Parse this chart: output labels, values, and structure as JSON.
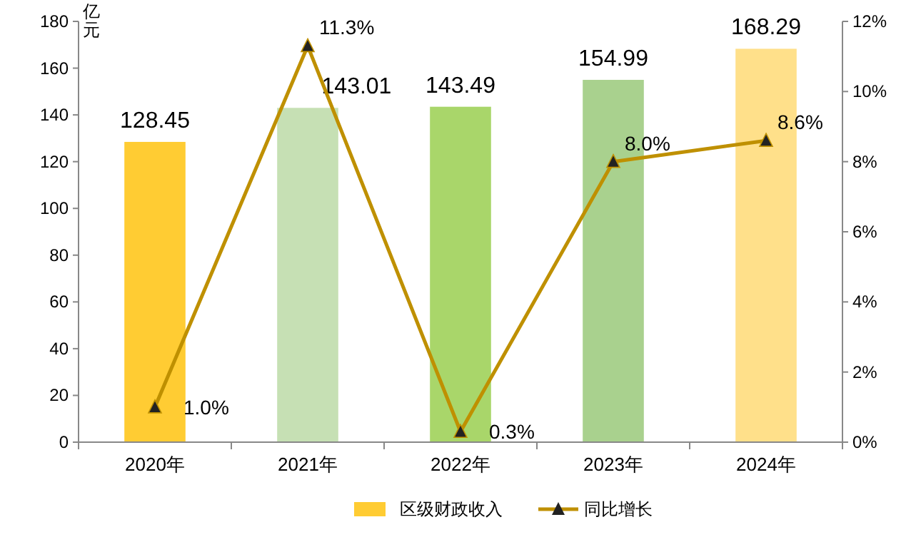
{
  "chart_data": {
    "type": "bar",
    "categories": [
      "2020年",
      "2021年",
      "2022年",
      "2023年",
      "2024年"
    ],
    "ylabel": "亿元",
    "ylim": [
      0,
      180
    ],
    "yticks": [
      0,
      20,
      40,
      60,
      80,
      100,
      120,
      140,
      160,
      180
    ],
    "y2lim": [
      0,
      12
    ],
    "y2ticks": [
      {
        "value": 0,
        "label": "0%"
      },
      {
        "value": 2,
        "label": "2%"
      },
      {
        "value": 4,
        "label": "4%"
      },
      {
        "value": 6,
        "label": "6%"
      },
      {
        "value": 8,
        "label": "8%"
      },
      {
        "value": 10,
        "label": "10%"
      },
      {
        "value": 12,
        "label": "12%"
      }
    ],
    "grid": false,
    "legend": "bottom",
    "series": [
      {
        "name": "区级财政收入",
        "color": "#ffcc33",
        "colors": [
          "#ffcc33",
          "#c6e0b4",
          "#a9d66a",
          "#a9d18e",
          "#ffe08a"
        ],
        "values": [
          128.45,
          143.01,
          143.49,
          154.99,
          168.29
        ],
        "value_labels": [
          "128.45",
          "143.01",
          "143.49",
          "154.99",
          "168.29"
        ]
      },
      {
        "name": "同比增长",
        "type": "line",
        "axis": "y2",
        "color": "#bf9000",
        "marker": "triangle",
        "values": [
          1.0,
          11.3,
          0.3,
          8.0,
          8.6
        ],
        "value_labels": [
          "1.0%",
          "11.3%",
          "0.3%",
          "8.0%",
          "8.6%"
        ]
      }
    ]
  }
}
